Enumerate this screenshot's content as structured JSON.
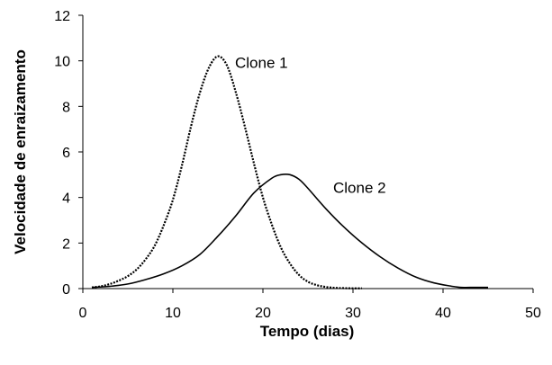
{
  "chart_data": {
    "type": "line",
    "title": "",
    "xlabel": "Tempo (dias)",
    "ylabel": "Velocidade de enraizamento",
    "xlim": [
      0,
      50
    ],
    "ylim": [
      0,
      12
    ],
    "x_ticks": [
      0,
      10,
      20,
      30,
      40,
      50
    ],
    "y_ticks": [
      0,
      2,
      4,
      6,
      8,
      10,
      12
    ],
    "grid": false,
    "legend": "none",
    "series": [
      {
        "name": "Clone 1",
        "style": "dotted",
        "color": "#000000",
        "x": [
          1,
          2,
          3,
          4,
          5,
          6,
          7,
          8,
          9,
          10,
          11,
          12,
          13,
          14,
          15,
          16,
          17,
          18,
          19,
          20,
          21,
          22,
          23,
          24,
          25,
          26,
          27,
          28,
          29,
          30,
          31
        ],
        "y": [
          0.05,
          0.1,
          0.2,
          0.35,
          0.55,
          0.85,
          1.3,
          1.9,
          2.8,
          3.9,
          5.4,
          7.1,
          8.6,
          9.7,
          10.2,
          9.8,
          8.6,
          7.1,
          5.5,
          4.0,
          2.8,
          1.8,
          1.1,
          0.6,
          0.3,
          0.15,
          0.07,
          0.03,
          0.02,
          0.01,
          0.01
        ]
      },
      {
        "name": "Clone 2",
        "style": "solid",
        "color": "#000000",
        "x": [
          1,
          3,
          5,
          7,
          9,
          11,
          13,
          15,
          17,
          19,
          21,
          22,
          23,
          24,
          25,
          27,
          29,
          31,
          33,
          35,
          37,
          39,
          41,
          42,
          43,
          45
        ],
        "y": [
          0.05,
          0.1,
          0.2,
          0.4,
          0.65,
          1.0,
          1.5,
          2.3,
          3.2,
          4.2,
          4.85,
          5.0,
          5.0,
          4.8,
          4.4,
          3.5,
          2.7,
          2.0,
          1.4,
          0.9,
          0.5,
          0.25,
          0.1,
          0.05,
          0.05,
          0.05
        ]
      }
    ],
    "annotations": [
      {
        "text": "Clone 1",
        "x": 16.9,
        "y": 9.7
      },
      {
        "text": "Clone 2",
        "x": 27.8,
        "y": 4.2
      }
    ]
  }
}
